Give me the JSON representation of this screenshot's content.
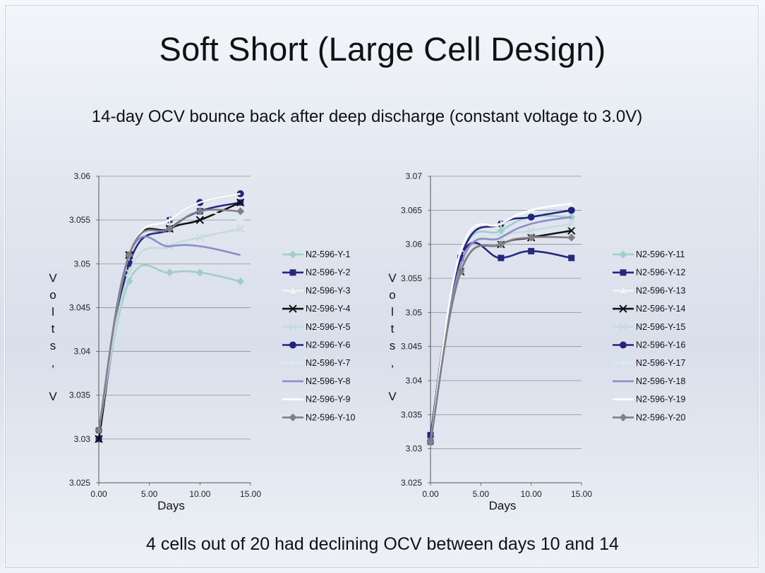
{
  "slide": {
    "title": "Soft Short (Large Cell Design)",
    "subtitle": "14-day OCV bounce back after deep discharge (constant voltage to 3.0V)",
    "footer": "4 cells out of 20 had declining OCV between days 10 and 14"
  },
  "chart_data": [
    {
      "type": "line",
      "xlabel": "Days",
      "ylabel": "Volts, V",
      "xlim": [
        0,
        15
      ],
      "ylim": [
        3.025,
        3.06
      ],
      "xticks": [
        "0.00",
        "5.00",
        "10.00",
        "15.00"
      ],
      "yticks": [
        "3.025",
        "3.03",
        "3.035",
        "3.04",
        "3.045",
        "3.05",
        "3.055",
        "3.06"
      ],
      "grid": true,
      "legend": "right",
      "x": [
        0,
        3,
        7,
        10,
        14
      ],
      "series": [
        {
          "name": "N2-596-Y-1",
          "values": [
            3.031,
            3.048,
            3.049,
            3.049,
            3.048
          ],
          "color": "#9fcfca",
          "marker": "diamond"
        },
        {
          "name": "N2-596-Y-2",
          "values": [
            3.03,
            3.05,
            3.054,
            3.056,
            3.057
          ],
          "color": "#26287e",
          "marker": "square"
        },
        {
          "name": "N2-596-Y-3",
          "values": [
            3.031,
            3.051,
            3.055,
            3.057,
            3.058
          ],
          "color": "#f4f4f4",
          "marker": "triangle"
        },
        {
          "name": "N2-596-Y-4",
          "values": [
            3.03,
            3.051,
            3.054,
            3.055,
            3.057
          ],
          "color": "#111111",
          "marker": "x"
        },
        {
          "name": "N2-596-Y-5",
          "values": [
            3.031,
            3.049,
            3.052,
            3.053,
            3.054
          ],
          "color": "#c5dcdb",
          "marker": "x"
        },
        {
          "name": "N2-596-Y-6",
          "values": [
            3.031,
            3.051,
            3.055,
            3.057,
            3.058
          ],
          "color": "#23237e",
          "marker": "circle"
        },
        {
          "name": "N2-596-Y-7",
          "values": [
            3.031,
            3.051,
            3.055,
            3.056,
            3.055
          ],
          "color": "#d6efee",
          "marker": "plus"
        },
        {
          "name": "N2-596-Y-8",
          "values": [
            3.031,
            3.051,
            3.052,
            3.052,
            3.051
          ],
          "color": "#8b8fc8",
          "marker": "none"
        },
        {
          "name": "N2-596-Y-9",
          "values": [
            3.031,
            3.051,
            3.055,
            3.057,
            3.058
          ],
          "color": "#ffffff",
          "marker": "none"
        },
        {
          "name": "N2-596-Y-10",
          "values": [
            3.031,
            3.051,
            3.054,
            3.056,
            3.056
          ],
          "color": "#808086",
          "marker": "diamond"
        }
      ]
    },
    {
      "type": "line",
      "xlabel": "Days",
      "ylabel": "Volts, V",
      "xlim": [
        0,
        15
      ],
      "ylim": [
        3.025,
        3.07
      ],
      "xticks": [
        "0.00",
        "5.00",
        "10.00",
        "15.00"
      ],
      "yticks": [
        "3.025",
        "3.03",
        "3.035",
        "3.04",
        "3.045",
        "3.05",
        "3.055",
        "3.06",
        "3.065",
        "3.07"
      ],
      "grid": true,
      "legend": "right",
      "x": [
        0,
        3,
        7,
        10,
        14
      ],
      "series": [
        {
          "name": "N2-596-Y-11",
          "values": [
            3.031,
            3.058,
            3.062,
            3.064,
            3.064
          ],
          "color": "#9fcfca",
          "marker": "diamond"
        },
        {
          "name": "N2-596-Y-12",
          "values": [
            3.032,
            3.058,
            3.058,
            3.059,
            3.058
          ],
          "color": "#26287e",
          "marker": "square"
        },
        {
          "name": "N2-596-Y-13",
          "values": [
            3.031,
            3.059,
            3.063,
            3.065,
            3.066
          ],
          "color": "#f4f4f4",
          "marker": "triangle"
        },
        {
          "name": "N2-596-Y-14",
          "values": [
            3.031,
            3.056,
            3.06,
            3.061,
            3.062
          ],
          "color": "#111111",
          "marker": "x"
        },
        {
          "name": "N2-596-Y-15",
          "values": [
            3.031,
            3.057,
            3.061,
            3.062,
            3.063
          ],
          "color": "#c5dcdb",
          "marker": "x"
        },
        {
          "name": "N2-596-Y-16",
          "values": [
            3.031,
            3.058,
            3.063,
            3.064,
            3.065
          ],
          "color": "#23237e",
          "marker": "circle"
        },
        {
          "name": "N2-596-Y-17",
          "values": [
            3.031,
            3.059,
            3.063,
            3.065,
            3.066
          ],
          "color": "#d6efee",
          "marker": "plus"
        },
        {
          "name": "N2-596-Y-18",
          "values": [
            3.031,
            3.057,
            3.061,
            3.063,
            3.064
          ],
          "color": "#8b8fc8",
          "marker": "none"
        },
        {
          "name": "N2-596-Y-19",
          "values": [
            3.031,
            3.059,
            3.063,
            3.065,
            3.066
          ],
          "color": "#ffffff",
          "marker": "none"
        },
        {
          "name": "N2-596-Y-20",
          "values": [
            3.031,
            3.056,
            3.06,
            3.061,
            3.061
          ],
          "color": "#808086",
          "marker": "diamond"
        }
      ]
    }
  ]
}
